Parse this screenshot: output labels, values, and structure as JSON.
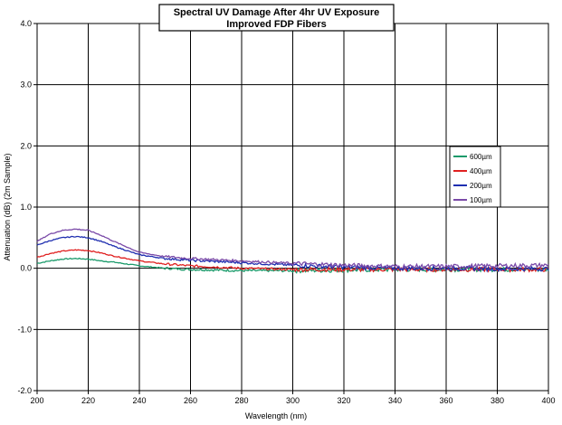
{
  "chart_data": {
    "type": "line",
    "title": "Spectral UV Damage After 4hr UV Exposure",
    "subtitle": "Improved FDP Fibers",
    "xlabel": "Wavelength (nm)",
    "ylabel": "Attenuation (dB) (2m Sample)",
    "xlim": [
      200,
      400
    ],
    "ylim": [
      -2.0,
      4.0
    ],
    "x_ticks": [
      200,
      220,
      240,
      260,
      280,
      300,
      320,
      340,
      360,
      380,
      400
    ],
    "y_ticks": [
      -2.0,
      -1.0,
      0.0,
      1.0,
      2.0,
      3.0,
      4.0
    ],
    "y_tick_labels": [
      "-2.0",
      "-1.0",
      "0.0",
      "1.0",
      "2.0",
      "3.0",
      "4.0"
    ],
    "grid": true,
    "legend_position": "right",
    "series": [
      {
        "name": "600µm",
        "color": "#1a9a6a",
        "x": [
          200,
          205,
          210,
          215,
          220,
          225,
          230,
          240,
          250,
          260,
          270,
          280,
          290,
          300,
          320,
          340,
          360,
          380,
          400
        ],
        "y": [
          0.08,
          0.12,
          0.15,
          0.16,
          0.15,
          0.12,
          0.1,
          0.04,
          0.0,
          -0.02,
          -0.03,
          -0.04,
          -0.04,
          -0.04,
          -0.03,
          -0.02,
          -0.02,
          -0.02,
          -0.02
        ]
      },
      {
        "name": "400µm",
        "color": "#e02020",
        "x": [
          200,
          205,
          210,
          215,
          220,
          225,
          230,
          240,
          250,
          260,
          270,
          280,
          290,
          300,
          320,
          340,
          360,
          380,
          400
        ],
        "y": [
          0.18,
          0.24,
          0.28,
          0.3,
          0.29,
          0.25,
          0.2,
          0.12,
          0.07,
          0.04,
          0.02,
          0.0,
          -0.01,
          -0.02,
          -0.02,
          -0.02,
          -0.02,
          -0.02,
          -0.02
        ]
      },
      {
        "name": "200µm",
        "color": "#1f2fb0",
        "x": [
          200,
          205,
          210,
          215,
          220,
          225,
          230,
          240,
          250,
          260,
          270,
          280,
          290,
          300,
          320,
          340,
          360,
          380,
          400
        ],
        "y": [
          0.38,
          0.45,
          0.5,
          0.52,
          0.5,
          0.44,
          0.36,
          0.22,
          0.16,
          0.13,
          0.11,
          0.09,
          0.07,
          0.05,
          0.02,
          0.0,
          0.0,
          -0.01,
          -0.01
        ]
      },
      {
        "name": "100µm",
        "color": "#7a4aa8",
        "x": [
          200,
          205,
          210,
          215,
          220,
          225,
          230,
          240,
          250,
          260,
          270,
          280,
          290,
          300,
          320,
          340,
          360,
          380,
          400
        ],
        "y": [
          0.44,
          0.56,
          0.62,
          0.64,
          0.62,
          0.54,
          0.44,
          0.26,
          0.19,
          0.16,
          0.14,
          0.12,
          0.1,
          0.08,
          0.05,
          0.03,
          0.03,
          0.04,
          0.05
        ]
      }
    ]
  }
}
